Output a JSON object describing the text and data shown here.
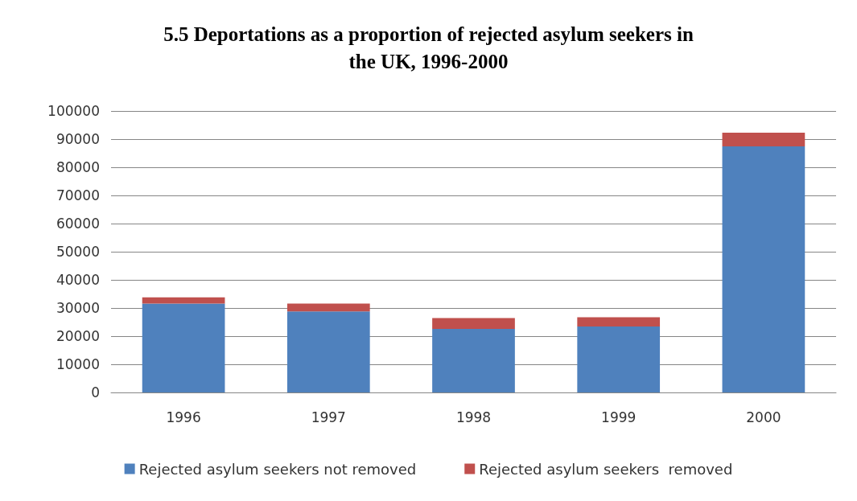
{
  "chart_data": {
    "type": "bar",
    "title": "5.5 Deportations as a proportion of rejected asylum seekers in\nthe UK, 1996-2000",
    "categories": [
      "1996",
      "1997",
      "1998",
      "1999",
      "2000"
    ],
    "stacked": true,
    "series": [
      {
        "name": "Rejected asylum seekers not removed",
        "color": "#4f81bd",
        "values": [
          31600,
          28800,
          22600,
          23400,
          87400
        ]
      },
      {
        "name": "Rejected asylum seekers  removed",
        "color": "#c0504d",
        "values": [
          2200,
          2800,
          3800,
          3300,
          4900
        ]
      }
    ],
    "ylim": [
      0,
      100000
    ],
    "yticks": [
      0,
      10000,
      20000,
      30000,
      40000,
      50000,
      60000,
      70000,
      80000,
      90000,
      100000
    ],
    "grid": "y",
    "legend": "bottom"
  }
}
